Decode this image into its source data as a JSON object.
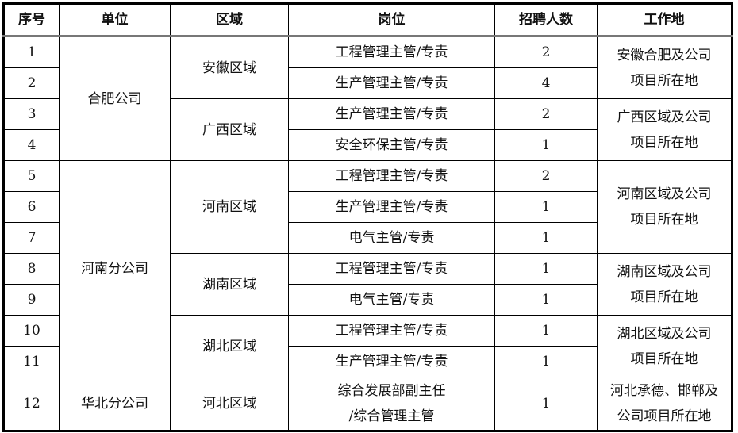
{
  "headers": [
    "序号",
    "单位",
    "区域",
    "岗位",
    "招聘人数",
    "工作地"
  ],
  "units": [
    "合肥公司",
    "河南分公司",
    "华北分公司"
  ],
  "regions": [
    "安徽区域",
    "广西区域",
    "河南区域",
    "湖南区域",
    "湖北区域",
    "河北区域"
  ],
  "locations": [
    "安徽合肥及公司项目所在地",
    "广西区域及公司项目所在地",
    "河南区域及公司项目所在地",
    "湖南区域及公司项目所在地",
    "湖北区域及公司项目所在地",
    "河北承德、邯郸及公司项目所在地"
  ],
  "location_lines": [
    [
      "安徽合肥及公司",
      "项目所在地"
    ],
    [
      "广西区域及公司",
      "项目所在地"
    ],
    [
      "河南区域及公司",
      "项目所在地"
    ],
    [
      "湖南区域及公司",
      "项目所在地"
    ],
    [
      "湖北区域及公司",
      "项目所在地"
    ],
    [
      "河北承德、邯郸及",
      "公司项目所在地"
    ]
  ],
  "rows": [
    {
      "no": "1",
      "position": "工程管理主管/专责",
      "count": "2"
    },
    {
      "no": "2",
      "position": "生产管理主管/专责",
      "count": "4"
    },
    {
      "no": "3",
      "position": "生产管理主管/专责",
      "count": "2"
    },
    {
      "no": "4",
      "position": "安全环保主管/专责",
      "count": "1"
    },
    {
      "no": "5",
      "position": "工程管理主管/专责",
      "count": "2"
    },
    {
      "no": "6",
      "position": "生产管理主管/专责",
      "count": "1"
    },
    {
      "no": "7",
      "position": "电气主管/专责",
      "count": "1"
    },
    {
      "no": "8",
      "position": "工程管理主管/专责",
      "count": "1"
    },
    {
      "no": "9",
      "position": "电气主管/专责",
      "count": "1"
    },
    {
      "no": "10",
      "position": "工程管理主管/专责",
      "count": "1"
    },
    {
      "no": "11",
      "position": "生产管理主管/专责",
      "count": "1"
    },
    {
      "no": "12",
      "position_lines": [
        "综合发展部副主任",
        "/综合管理主管"
      ],
      "count": "1"
    }
  ]
}
